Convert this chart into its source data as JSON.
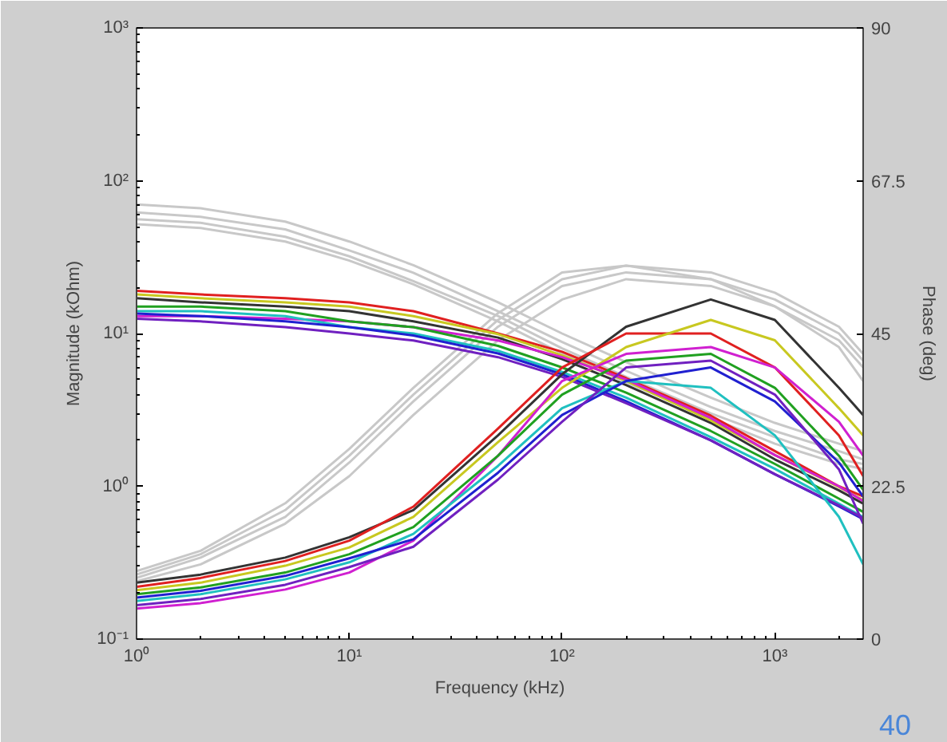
{
  "chart_data": {
    "type": "line",
    "xlabel": "Frequency (kHz)",
    "ylabel": "Magnitude (kOhm)",
    "y2label": "Phase (deg)",
    "log": "xy",
    "grid": false,
    "marker": "none",
    "line_style": "solid",
    "xlim": [
      1,
      2600
    ],
    "xticks": [
      {
        "value": 1,
        "label": "10⁰"
      },
      {
        "value": 10,
        "label": "10¹"
      },
      {
        "value": 100,
        "label": "10²"
      },
      {
        "value": 1000,
        "label": "10³"
      }
    ],
    "ylim": [
      0.1,
      1000
    ],
    "yticks": [
      {
        "value": 0.1,
        "label": "10⁻¹"
      },
      {
        "value": 1,
        "label": "10⁰"
      },
      {
        "value": 10,
        "label": "10¹"
      },
      {
        "value": 100,
        "label": "10²"
      },
      {
        "value": 1000,
        "label": "10³"
      }
    ],
    "y2lim": [
      0,
      90
    ],
    "y2ticks": [
      0,
      22.5,
      45,
      67.5,
      90
    ],
    "x": [
      1,
      2,
      5,
      10,
      20,
      50,
      100,
      200,
      500,
      1000,
      2000,
      2600
    ],
    "series": [
      {
        "color": "#c8c8c8",
        "values": [
          70,
          66,
          54,
          40,
          28,
          16,
          10,
          6.5,
          3.8,
          2.6,
          1.9,
          1.7
        ]
      },
      {
        "color": "#c8c8c8",
        "values": [
          62,
          58,
          48,
          35,
          25,
          14,
          8.8,
          5.7,
          3.3,
          2.3,
          1.7,
          1.5
        ]
      },
      {
        "color": "#c8c8c8",
        "values": [
          56,
          53,
          43,
          32,
          22,
          13,
          8,
          5.2,
          3,
          2.1,
          1.5,
          1.4
        ]
      },
      {
        "color": "#c8c8c8",
        "values": [
          52,
          49,
          40,
          30,
          21,
          12,
          7.4,
          4.8,
          2.8,
          1.9,
          1.4,
          1.3
        ]
      },
      {
        "color": "#c8c8c8",
        "axis": "y2",
        "values": [
          9,
          12,
          18,
          26,
          35,
          46,
          52,
          54,
          53,
          50,
          45,
          41
        ]
      },
      {
        "color": "#c8c8c8",
        "axis": "y2",
        "values": [
          10,
          13,
          20,
          28,
          37,
          48,
          54,
          55,
          54,
          51,
          46,
          42
        ]
      },
      {
        "color": "#c8c8c8",
        "axis": "y2",
        "values": [
          8.5,
          11,
          17,
          24,
          33,
          44,
          50,
          53,
          52,
          49,
          43,
          38
        ]
      },
      {
        "color": "#c8c8c8",
        "axis": "y2",
        "values": [
          9.5,
          12.5,
          19,
          27,
          36,
          47,
          53,
          55,
          53,
          49,
          44,
          40
        ]
      },
      {
        "color": "#e02020",
        "values": [
          19,
          18,
          17,
          16,
          14,
          10,
          7.6,
          5.1,
          2.9,
          1.7,
          1.0,
          0.86
        ]
      },
      {
        "color": "#333333",
        "values": [
          17,
          16,
          15,
          14,
          12,
          9.4,
          6.8,
          4.6,
          2.6,
          1.5,
          0.94,
          0.77
        ]
      },
      {
        "color": "#c8c820",
        "values": [
          18,
          17,
          16,
          15,
          13,
          9.9,
          7.2,
          4.9,
          2.7,
          1.6,
          0.99,
          0.81
        ]
      },
      {
        "color": "#d020d0",
        "values": [
          13,
          13,
          12.5,
          12,
          11,
          9,
          7,
          5,
          2.8,
          1.6,
          1.0,
          0.8
        ]
      },
      {
        "color": "#20a020",
        "values": [
          15,
          15,
          14,
          12,
          11,
          8.3,
          6.0,
          4.1,
          2.3,
          1.4,
          0.83,
          0.68
        ]
      },
      {
        "color": "#20c0c0",
        "values": [
          14,
          14,
          13,
          11,
          10,
          7.7,
          5.6,
          3.8,
          2.1,
          1.3,
          0.77,
          0.63
        ]
      },
      {
        "color": "#2020d0",
        "values": [
          13.5,
          13,
          12,
          11,
          9.7,
          7.4,
          5.4,
          3.6,
          2.0,
          1.2,
          0.74,
          0.61
        ]
      },
      {
        "color": "#7020c0",
        "values": [
          12.5,
          12,
          11,
          10,
          9,
          7,
          5.2,
          3.5,
          2.0,
          1.2,
          0.75,
          0.62
        ]
      },
      {
        "color": "#333333",
        "axis": "y2",
        "values": [
          8.3,
          9.5,
          12,
          15,
          19,
          30,
          39,
          46,
          50,
          47,
          37,
          33
        ]
      },
      {
        "color": "#e02020",
        "axis": "y2",
        "values": [
          7.7,
          9,
          11.5,
          14.5,
          19.5,
          31,
          40,
          45,
          45,
          40,
          30,
          24
        ]
      },
      {
        "color": "#c8c820",
        "axis": "y2",
        "values": [
          7.2,
          8.3,
          10.8,
          13.5,
          18,
          29,
          37,
          43,
          47,
          44,
          34,
          30
        ]
      },
      {
        "color": "#d020d0",
        "axis": "y2",
        "values": [
          4.5,
          5.3,
          7.3,
          9.8,
          14.5,
          27,
          38,
          42,
          43,
          40,
          32,
          27
        ]
      },
      {
        "color": "#20a020",
        "axis": "y2",
        "values": [
          6.6,
          7.6,
          9.8,
          12.5,
          16.5,
          27,
          36,
          41,
          42,
          37,
          27,
          22
        ]
      },
      {
        "color": "#20c0c0",
        "axis": "y2",
        "values": [
          5.6,
          6.6,
          8.8,
          11.3,
          15.5,
          25.5,
          34,
          38,
          37,
          30,
          18,
          11
        ]
      },
      {
        "color": "#2020d0",
        "axis": "y2",
        "values": [
          6.1,
          7.1,
          9.3,
          11.9,
          14.7,
          24.5,
          33,
          38,
          40,
          35,
          26,
          21
        ]
      },
      {
        "color": "#7020c0",
        "axis": "y2",
        "values": [
          5.0,
          5.9,
          8,
          10.6,
          13.6,
          23.5,
          32,
          40,
          41,
          36,
          25,
          17
        ]
      }
    ],
    "annotations": [
      "40"
    ]
  }
}
